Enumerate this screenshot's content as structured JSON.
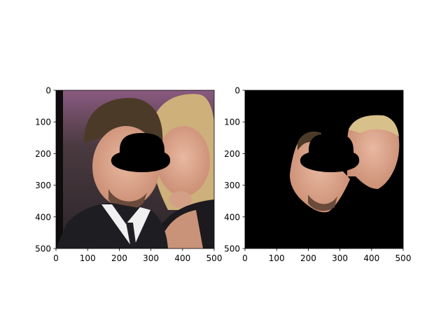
{
  "chart_data": [
    {
      "type": "image",
      "panel": "left",
      "title": "",
      "xlabel": "",
      "ylabel": "",
      "xlim": [
        0,
        500
      ],
      "ylim": [
        500,
        0
      ],
      "x_ticks": [
        0,
        100,
        200,
        300,
        400,
        500
      ],
      "y_ticks": [
        0,
        100,
        200,
        300,
        400,
        500
      ],
      "grid": false,
      "content": "photo of two people with a black hat-shaped mask over the eyes"
    },
    {
      "type": "image",
      "panel": "right",
      "title": "",
      "xlabel": "",
      "ylabel": "",
      "xlim": [
        0,
        500
      ],
      "ylim": [
        500,
        0
      ],
      "x_ticks": [
        0,
        100,
        200,
        300,
        400,
        500
      ],
      "y_ticks": [
        0,
        100,
        200,
        300,
        400,
        500
      ],
      "grid": false,
      "content": "face regions on black background with black hat-shaped mask"
    }
  ],
  "colors": {
    "mask": "#000000",
    "skin": "#d9a489",
    "hair_dark": "#4a3a2a",
    "hair_blonde": "#d8c08a",
    "suit": "#1e1e22",
    "shirt": "#f2f2f2",
    "background_photo": "#4a3f44"
  }
}
